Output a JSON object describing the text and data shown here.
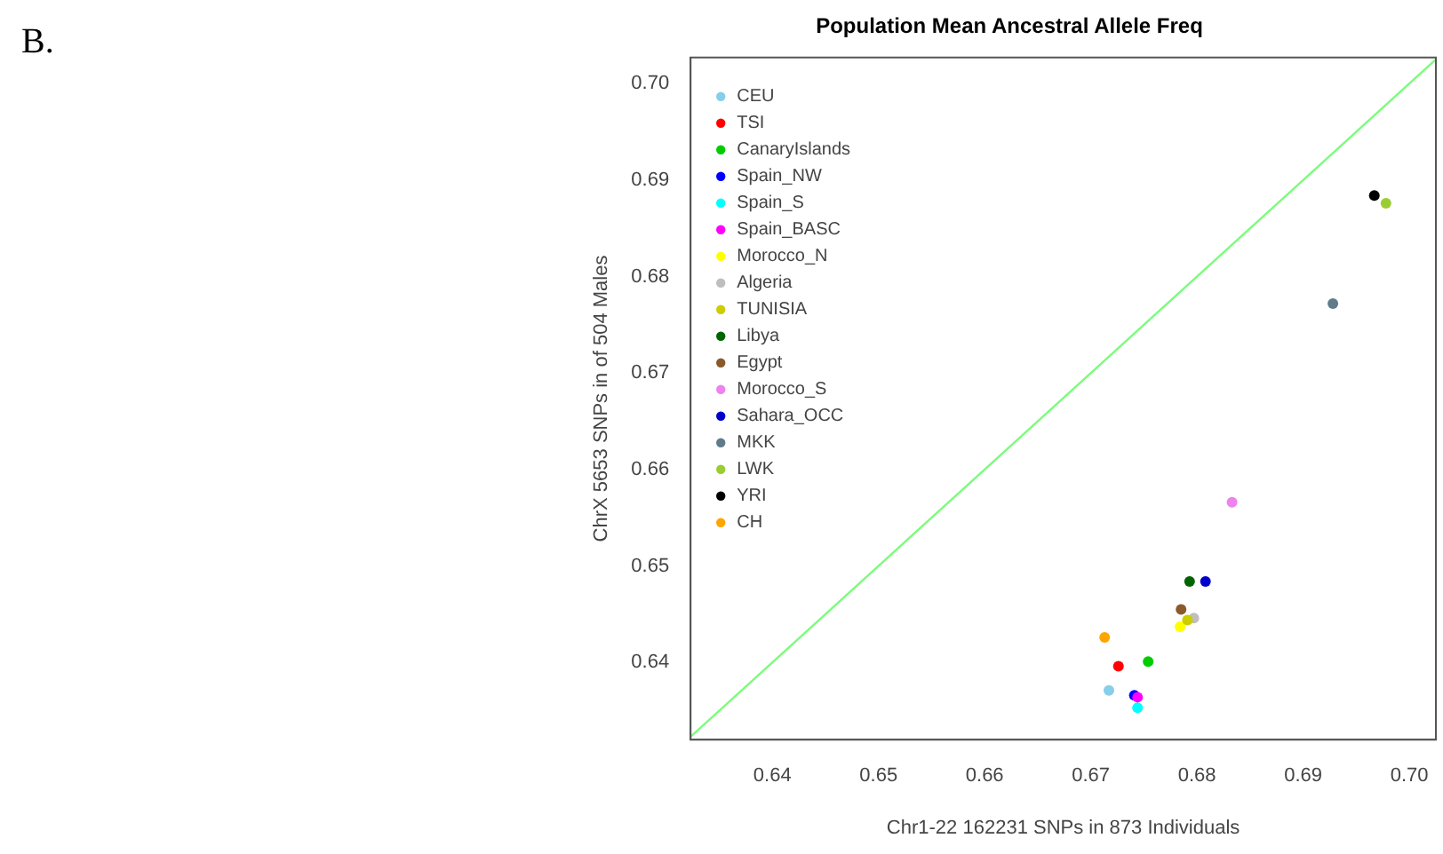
{
  "chart_data": {
    "type": "scatter",
    "title": "Population Mean Ancestral Allele Freq",
    "xlabel": "Chr1-22 162231 SNPs in 873 Individuals",
    "ylabel": "ChrX 5653 SNPs in of 504 Males",
    "annotations": [
      "B."
    ],
    "xlim": [
      0.6323,
      0.7025
    ],
    "ylim": [
      0.632,
      0.7027
    ],
    "xticks": [
      0.64,
      0.65,
      0.66,
      0.67,
      0.68,
      0.69,
      {
        "value": 0.7,
        "label": "0.70"
      }
    ],
    "yticks": [
      0.64,
      0.65,
      0.66,
      0.67,
      0.68,
      0.69,
      {
        "value": 0.7,
        "label": "0.70"
      }
    ],
    "grid": false,
    "legend": "top left",
    "marker": "circle",
    "series": [
      {
        "name": "CEU",
        "color": "#87ceeb",
        "x": [
          0.6717
        ],
        "values": [
          0.6371
        ]
      },
      {
        "name": "TSI",
        "color": "#ff0000",
        "x": [
          0.6726
        ],
        "values": [
          0.6396
        ]
      },
      {
        "name": "CanaryIslands",
        "color": "#00cd00",
        "x": [
          0.6754
        ],
        "values": [
          0.6401
        ]
      },
      {
        "name": "Spain_NW",
        "color": "#0000ff",
        "x": [
          0.6741
        ],
        "values": [
          0.6366
        ]
      },
      {
        "name": "Spain_S",
        "color": "#00ffff",
        "x": [
          0.6744
        ],
        "values": [
          0.6353
        ]
      },
      {
        "name": "Spain_BASC",
        "color": "#ff00ff",
        "x": [
          0.6744
        ],
        "values": [
          0.6364
        ]
      },
      {
        "name": "Morocco_N",
        "color": "#ffff00",
        "x": [
          0.6784
        ],
        "values": [
          0.6437
        ]
      },
      {
        "name": "Algeria",
        "color": "#bebebe",
        "x": [
          0.6797
        ],
        "values": [
          0.6446
        ]
      },
      {
        "name": "TUNISIA",
        "color": "#cdcd00",
        "x": [
          0.6791
        ],
        "values": [
          0.6444
        ]
      },
      {
        "name": "Libya",
        "color": "#006400",
        "x": [
          0.6793
        ],
        "values": [
          0.6484
        ]
      },
      {
        "name": "Egypt",
        "color": "#8b5a2b",
        "x": [
          0.6785
        ],
        "values": [
          0.6455
        ]
      },
      {
        "name": "Morocco_S",
        "color": "#ee82ee",
        "x": [
          0.6833
        ],
        "values": [
          0.6566
        ]
      },
      {
        "name": "Sahara_OCC",
        "color": "#0000cd",
        "x": [
          0.6808
        ],
        "values": [
          0.6484
        ]
      },
      {
        "name": "MKK",
        "color": "#607b8b",
        "x": [
          0.6928
        ],
        "values": [
          0.6772
        ]
      },
      {
        "name": "LWK",
        "color": "#9acd32",
        "x": [
          0.6978
        ],
        "values": [
          0.6876
        ]
      },
      {
        "name": "YRI",
        "color": "#000000",
        "x": [
          0.6967
        ],
        "values": [
          0.6884
        ]
      },
      {
        "name": "CH",
        "color": "#ffa500",
        "x": [
          0.6713
        ],
        "values": [
          0.6426
        ]
      },
      {
        "type": "line",
        "color": "#7cfc7c",
        "marker": "none",
        "x": [
          0.6323,
          0.7025
        ],
        "values": [
          0.6323,
          0.7025
        ]
      }
    ]
  }
}
